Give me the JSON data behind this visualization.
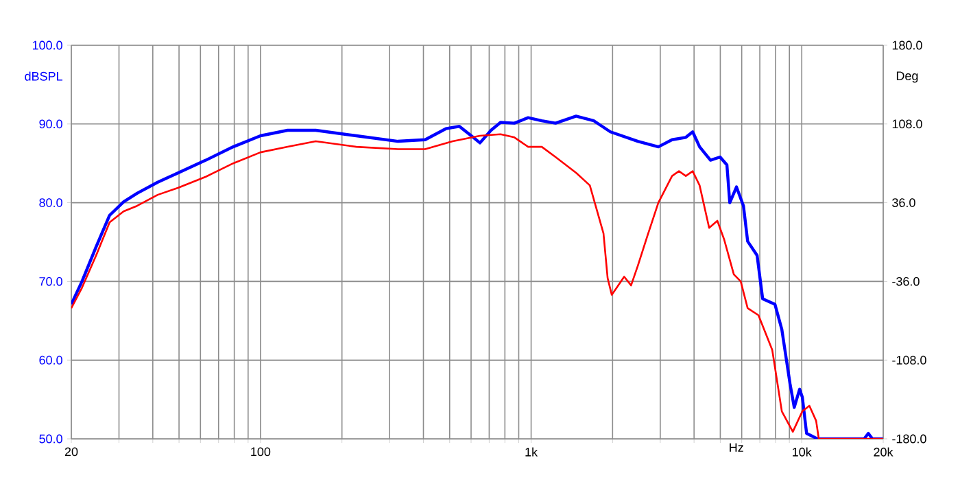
{
  "chart_data": {
    "type": "line",
    "xlabel": "Hz",
    "ylabel": "dBSPL",
    "y2label": "Deg",
    "log": "x",
    "grid": true,
    "marker": "none",
    "line_style": "solid",
    "xlim": [
      20,
      20000
    ],
    "xticks": [
      20,
      {
        "value": 30,
        "label": null
      },
      {
        "value": 40,
        "label": null
      },
      {
        "value": 50,
        "label": null
      },
      {
        "value": 60,
        "label": null
      },
      {
        "value": 70,
        "label": null
      },
      {
        "value": 80,
        "label": null
      },
      {
        "value": 90,
        "label": null
      },
      100,
      {
        "value": 200,
        "label": null
      },
      {
        "value": 300,
        "label": null
      },
      {
        "value": 400,
        "label": null
      },
      {
        "value": 500,
        "label": null
      },
      {
        "value": 600,
        "label": null
      },
      {
        "value": 700,
        "label": null
      },
      {
        "value": 800,
        "label": null
      },
      {
        "value": 900,
        "label": null
      },
      {
        "value": 1000,
        "label": "1k"
      },
      {
        "value": 2000,
        "label": null
      },
      {
        "value": 3000,
        "label": null
      },
      {
        "value": 4000,
        "label": null
      },
      {
        "value": 5000,
        "label": null
      },
      {
        "value": 6000,
        "label": null
      },
      {
        "value": 7000,
        "label": null
      },
      {
        "value": 8000,
        "label": null
      },
      {
        "value": 9000,
        "label": null
      },
      {
        "value": 10000,
        "label": "10k"
      },
      {
        "value": 20000,
        "label": "20k"
      }
    ],
    "ylim": [
      50,
      100
    ],
    "yticks": [
      {
        "value": 50,
        "label": "50.0"
      },
      {
        "value": 60,
        "label": "60.0"
      },
      {
        "value": 70,
        "label": "70.0"
      },
      {
        "value": 80,
        "label": "80.0"
      },
      {
        "value": 90,
        "label": "90.0"
      },
      {
        "value": 100,
        "label": "100.0"
      }
    ],
    "y2lim": [
      -180,
      180
    ],
    "y2ticks": [
      {
        "value": -180,
        "label": "-180.0"
      },
      {
        "value": -108,
        "label": "-108.0"
      },
      {
        "value": -36,
        "label": "-36.0"
      },
      {
        "value": 36,
        "label": "36.0"
      },
      {
        "value": 108,
        "label": "108.0"
      },
      {
        "value": 180,
        "label": "180.0"
      }
    ],
    "series": [
      {
        "color": "#0000ff",
        "x": [
          20,
          21.9,
          24.7,
          27.7,
          31.2,
          35,
          41.7,
          49.7,
          62.8,
          79.3,
          100,
          126,
          160,
          226,
          322,
          406,
          484,
          543,
          611,
          647,
          711,
          771,
          867,
          975,
          1095,
          1231,
          1466,
          1706,
          1963,
          2480,
          2952,
          3318,
          3730,
          3955,
          4193,
          4600,
          4991,
          5290,
          5420,
          5740,
          6090,
          6310,
          6840,
          7170,
          7960,
          8440,
          9050,
          9380,
          9820,
          10050,
          10420,
          11430,
          17000,
          17620,
          18250,
          20000
        ],
        "values": [
          67.1,
          70,
          74.4,
          78.4,
          80.1,
          81.2,
          82.6,
          83.8,
          85.4,
          87.1,
          88.5,
          89.2,
          89.2,
          88.5,
          87.8,
          88,
          89.4,
          89.7,
          88.3,
          87.6,
          89.2,
          90.2,
          90.1,
          90.8,
          90.4,
          90.1,
          91,
          90.4,
          89,
          87.8,
          87.1,
          88,
          88.3,
          89,
          87.1,
          85.4,
          85.8,
          84.8,
          80,
          82,
          79.6,
          75.1,
          73.3,
          67.8,
          67.1,
          63.9,
          57,
          54,
          56.3,
          55.3,
          50.7,
          50,
          50,
          50.7,
          50,
          50
        ]
      },
      {
        "color": "#ff0000",
        "x": [
          20,
          21.9,
          24.7,
          27.7,
          31.2,
          35,
          41.7,
          49.7,
          62.8,
          79.3,
          100,
          126,
          160,
          226,
          322,
          406,
          513,
          647,
          771,
          867,
          975,
          1095,
          1231,
          1466,
          1648,
          1851,
          1918,
          1986,
          2080,
          2207,
          2341,
          2480,
          2690,
          2952,
          3318,
          3518,
          3730,
          3955,
          4193,
          4548,
          4877,
          5170,
          5610,
          5950,
          6310,
          6920,
          7780,
          8440,
          9270,
          10050,
          10670,
          11300,
          11560,
          20000
        ],
        "values": [
          66.6,
          69.2,
          73.3,
          77.5,
          78.9,
          79.6,
          81,
          81.9,
          83.3,
          85,
          86.4,
          87.1,
          87.8,
          87.1,
          86.8,
          86.8,
          87.8,
          88.5,
          88.7,
          88.3,
          87.1,
          87.1,
          85.8,
          83.8,
          82.2,
          76.1,
          70.4,
          68.3,
          69.3,
          70.6,
          69.5,
          72,
          75.8,
          80,
          83.4,
          84,
          83.4,
          84,
          82.2,
          76.8,
          77.7,
          75.3,
          70.9,
          70,
          66.6,
          65.7,
          61.3,
          53.5,
          50.9,
          53.5,
          54.2,
          52.3,
          50,
          50
        ]
      }
    ]
  }
}
